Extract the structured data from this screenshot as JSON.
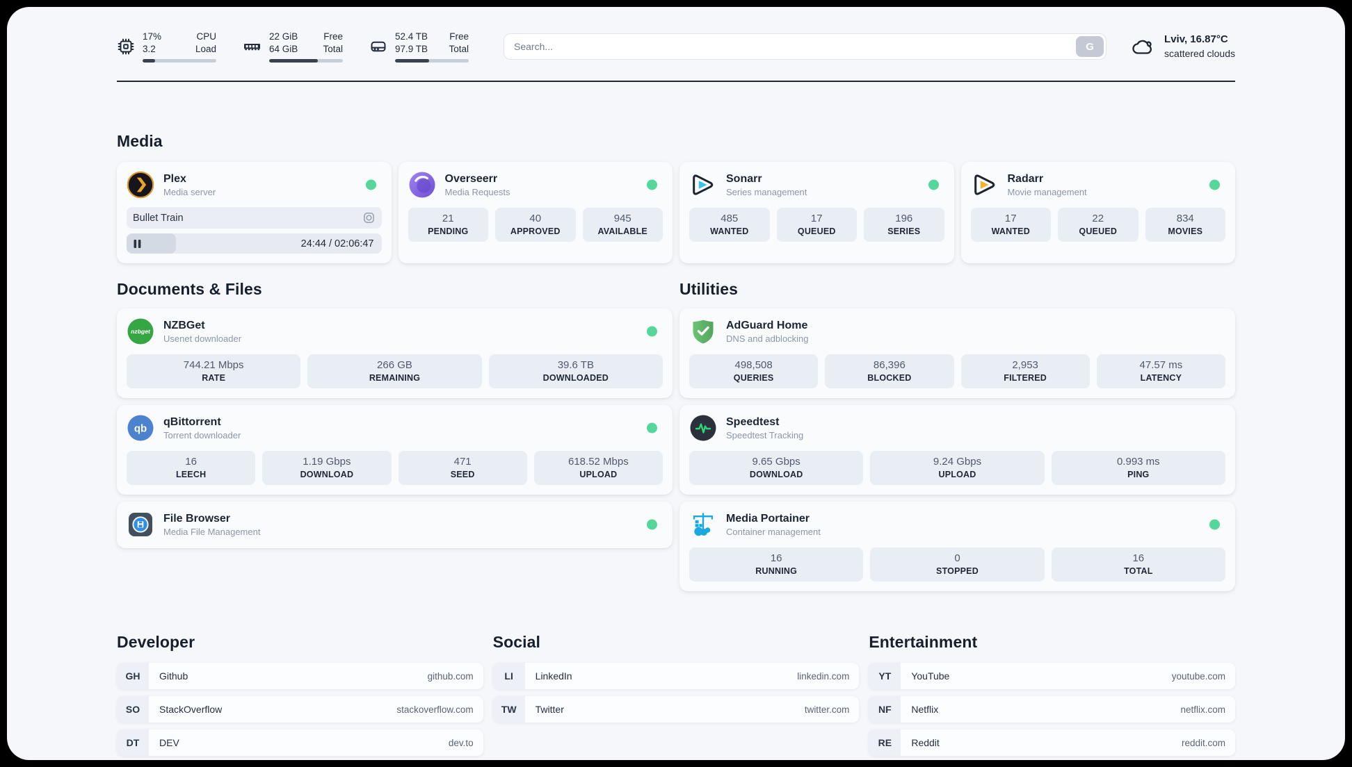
{
  "topbar": {
    "metrics": [
      {
        "name": "cpu",
        "col1": [
          "17%",
          "3.2"
        ],
        "col2": [
          "CPU",
          "Load"
        ],
        "progress": 17
      },
      {
        "name": "ram",
        "col1": [
          "22 GiB",
          "64 GiB"
        ],
        "col2": [
          "Free",
          "Total"
        ],
        "progress": 66
      },
      {
        "name": "disk",
        "col1": [
          "52.4 TB",
          "97.9 TB"
        ],
        "col2": [
          "Free",
          "Total"
        ],
        "progress": 46
      }
    ],
    "search": {
      "placeholder": "Search...",
      "button_label": "G"
    },
    "weather": {
      "location": "Lviv, 16.87°C",
      "condition": "scattered clouds"
    }
  },
  "sections": {
    "media": {
      "title": "Media"
    },
    "documents": {
      "title": "Documents & Files"
    },
    "utilities": {
      "title": "Utilities"
    },
    "developer": {
      "title": "Developer"
    },
    "social": {
      "title": "Social"
    },
    "entertainment": {
      "title": "Entertainment"
    }
  },
  "apps": {
    "plex": {
      "name": "Plex",
      "subtitle": "Media server",
      "now_playing": "Bullet Train",
      "time": "24:44 / 02:06:47",
      "progress": 19.5
    },
    "overseerr": {
      "name": "Overseerr",
      "subtitle": "Media Requests",
      "stats": [
        {
          "value": "21",
          "label": "PENDING"
        },
        {
          "value": "40",
          "label": "APPROVED"
        },
        {
          "value": "945",
          "label": "AVAILABLE"
        }
      ]
    },
    "sonarr": {
      "name": "Sonarr",
      "subtitle": "Series management",
      "stats": [
        {
          "value": "485",
          "label": "WANTED"
        },
        {
          "value": "17",
          "label": "QUEUED"
        },
        {
          "value": "196",
          "label": "SERIES"
        }
      ]
    },
    "radarr": {
      "name": "Radarr",
      "subtitle": "Movie management",
      "stats": [
        {
          "value": "17",
          "label": "WANTED"
        },
        {
          "value": "22",
          "label": "QUEUED"
        },
        {
          "value": "834",
          "label": "MOVIES"
        }
      ]
    },
    "nzbget": {
      "name": "NZBGet",
      "subtitle": "Usenet downloader",
      "stats": [
        {
          "value": "744.21 Mbps",
          "label": "RATE"
        },
        {
          "value": "266 GB",
          "label": "REMAINING"
        },
        {
          "value": "39.6 TB",
          "label": "DOWNLOADED"
        }
      ]
    },
    "qbittorrent": {
      "name": "qBittorrent",
      "subtitle": "Torrent downloader",
      "stats": [
        {
          "value": "16",
          "label": "LEECH"
        },
        {
          "value": "1.19 Gbps",
          "label": "DOWNLOAD"
        },
        {
          "value": "471",
          "label": "SEED"
        },
        {
          "value": "618.52 Mbps",
          "label": "UPLOAD"
        }
      ]
    },
    "filebrowser": {
      "name": "File Browser",
      "subtitle": "Media File Management"
    },
    "adguard": {
      "name": "AdGuard Home",
      "subtitle": "DNS and adblocking",
      "stats": [
        {
          "value": "498,508",
          "label": "QUERIES"
        },
        {
          "value": "86,396",
          "label": "BLOCKED"
        },
        {
          "value": "2,953",
          "label": "FILTERED"
        },
        {
          "value": "47.57 ms",
          "label": "LATENCY"
        }
      ]
    },
    "speedtest": {
      "name": "Speedtest",
      "subtitle": "Speedtest Tracking",
      "stats": [
        {
          "value": "9.65 Gbps",
          "label": "DOWNLOAD"
        },
        {
          "value": "9.24 Gbps",
          "label": "UPLOAD"
        },
        {
          "value": "0.993 ms",
          "label": "PING"
        }
      ]
    },
    "portainer": {
      "name": "Media Portainer",
      "subtitle": "Container management",
      "stats": [
        {
          "value": "16",
          "label": "RUNNING"
        },
        {
          "value": "0",
          "label": "STOPPED"
        },
        {
          "value": "16",
          "label": "TOTAL"
        }
      ]
    }
  },
  "links": {
    "developer": [
      {
        "abbr": "GH",
        "name": "Github",
        "url": "github.com"
      },
      {
        "abbr": "SO",
        "name": "StackOverflow",
        "url": "stackoverflow.com"
      },
      {
        "abbr": "DT",
        "name": "DEV",
        "url": "dev.to"
      }
    ],
    "social": [
      {
        "abbr": "LI",
        "name": "LinkedIn",
        "url": "linkedin.com"
      },
      {
        "abbr": "TW",
        "name": "Twitter",
        "url": "twitter.com"
      }
    ],
    "entertainment": [
      {
        "abbr": "YT",
        "name": "YouTube",
        "url": "youtube.com"
      },
      {
        "abbr": "NF",
        "name": "Netflix",
        "url": "netflix.com"
      },
      {
        "abbr": "RE",
        "name": "Reddit",
        "url": "reddit.com"
      }
    ]
  },
  "colors": {
    "status_online": "#55d79c",
    "accent_dark": "#20262f",
    "docker_blue": "#1ba8e0"
  }
}
